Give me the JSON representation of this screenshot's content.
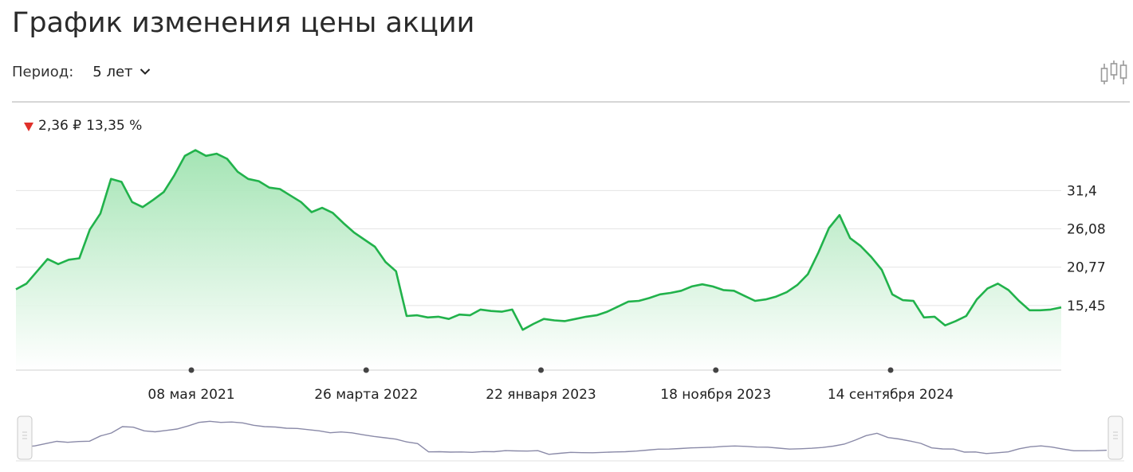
{
  "title": "График изменения цены акции",
  "period": {
    "label": "Период:",
    "value": "5 лет"
  },
  "icons": {
    "dropdown": "chevron-down-icon",
    "chart_type": "candlestick-icon",
    "change_direction": "triangle-down-icon"
  },
  "colors": {
    "line": "#21b24b",
    "fill": "#b8ecc4",
    "negative": "#e0302a",
    "navigator_line": "#8a8aa8"
  },
  "change": {
    "absolute": "2,36 ₽",
    "percent": "13,35 %"
  },
  "chart_data": {
    "type": "area",
    "title": "",
    "xlabel": "",
    "ylabel": "",
    "y_ticks": [
      "31,4",
      "26,08",
      "20,77",
      "15,45"
    ],
    "ylim": [
      6.5,
      38.5
    ],
    "x_ticks": [
      "08 мая 2021",
      "26 марта 2022",
      "22 января 2023",
      "18 ноября 2023",
      "14 сентября 2024"
    ],
    "grid": true,
    "y_axis_position": "right",
    "series": [
      {
        "values": [
          17.7,
          18.5,
          20.2,
          21.9,
          21.2,
          21.8,
          22.0,
          26.0,
          28.2,
          33.0,
          32.6,
          29.8,
          29.1,
          30.1,
          31.2,
          33.5,
          36.2,
          37.0,
          36.2,
          36.5,
          35.8,
          34.0,
          33.0,
          32.7,
          31.8,
          31.6,
          30.7,
          29.8,
          28.4,
          29.0,
          28.3,
          26.9,
          25.6,
          24.6,
          23.6,
          21.5,
          20.2,
          14.0,
          14.1,
          13.8,
          13.9,
          13.6,
          14.2,
          14.1,
          14.9,
          14.7,
          14.6,
          14.9,
          12.1,
          12.9,
          13.6,
          13.4,
          13.3,
          13.6,
          13.9,
          14.1,
          14.6,
          15.3,
          16.0,
          16.1,
          16.5,
          17.0,
          17.2,
          17.5,
          18.1,
          18.4,
          18.1,
          17.6,
          17.5,
          16.8,
          16.1,
          16.3,
          16.7,
          17.3,
          18.3,
          19.8,
          22.8,
          26.2,
          28.0,
          24.8,
          23.7,
          22.2,
          20.4,
          17.0,
          16.2,
          16.1,
          13.8,
          13.9,
          12.7,
          13.3,
          14.0,
          16.3,
          17.8,
          18.5,
          17.6,
          16.1,
          14.8,
          14.8,
          14.9,
          15.2
        ]
      }
    ]
  }
}
